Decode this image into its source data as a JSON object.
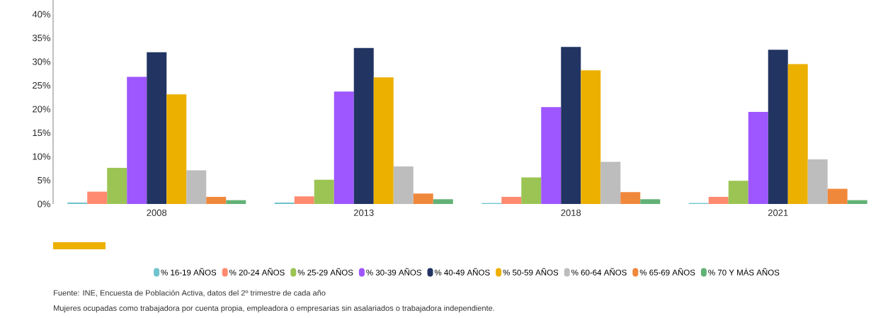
{
  "chart_data": {
    "type": "bar",
    "categories": [
      "2008",
      "2013",
      "2018",
      "2021"
    ],
    "ylim": [
      0,
      43
    ],
    "yticks": [
      {
        "value": 0,
        "label": "0%"
      },
      {
        "value": 5,
        "label": "5%"
      },
      {
        "value": 10,
        "label": "10%"
      },
      {
        "value": 15,
        "label": "15%"
      },
      {
        "value": 20,
        "label": "20%"
      },
      {
        "value": 25,
        "label": "25%"
      },
      {
        "value": 30,
        "label": "30%"
      },
      {
        "value": 35,
        "label": "35%"
      },
      {
        "value": 40,
        "label": "40%"
      }
    ],
    "series": [
      {
        "name": "% 16-19 AÑOS",
        "color": "#6fc3cc",
        "values": [
          0.3,
          0.3,
          0.2,
          0.2
        ]
      },
      {
        "name": "% 20-24 AÑOS",
        "color": "#ff8a70",
        "values": [
          2.6,
          1.6,
          1.5,
          1.5
        ]
      },
      {
        "name": "% 25-29 AÑOS",
        "color": "#9bc454",
        "values": [
          7.6,
          5.1,
          5.6,
          4.9
        ]
      },
      {
        "name": "% 30-39 AÑOS",
        "color": "#9e56ff",
        "values": [
          26.8,
          23.7,
          20.4,
          19.4
        ]
      },
      {
        "name": "% 40-49 AÑOS",
        "color": "#223462",
        "values": [
          32.0,
          32.9,
          33.1,
          32.5
        ]
      },
      {
        "name": "% 50-59 AÑOS",
        "color": "#ecb000",
        "values": [
          23.1,
          26.7,
          28.2,
          29.5
        ]
      },
      {
        "name": "% 60-64 AÑOS",
        "color": "#bdbdbd",
        "values": [
          7.1,
          7.9,
          8.9,
          9.4
        ]
      },
      {
        "name": "% 65-69 AÑOS",
        "color": "#f0883c",
        "values": [
          1.5,
          2.2,
          2.5,
          3.2
        ]
      },
      {
        "name": "% 70 Y MÁS AÑOS",
        "color": "#62b176",
        "values": [
          0.8,
          1.0,
          1.0,
          0.8
        ]
      }
    ],
    "legend": "bottom",
    "grid": false,
    "annotations": [
      "Fuente: INE, Encuesta de Población Activa, datos del 2º trimestre de cada año",
      "Mujeres ocupadas como trabajadora por cuenta propia, empleadora o empresarias sin asalariados o trabajadora independiente."
    ]
  }
}
